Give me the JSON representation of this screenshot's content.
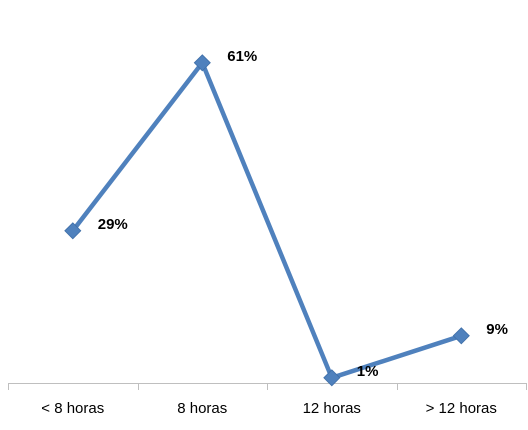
{
  "chart_data": {
    "type": "line",
    "categories": [
      "< 8 horas",
      "8 horas",
      "12 horas",
      "> 12 horas"
    ],
    "series": [
      {
        "values": [
          29,
          61,
          1,
          9
        ],
        "labels": [
          "29%",
          "61%",
          "1%",
          "9%"
        ]
      }
    ],
    "title": "",
    "xlabel": "",
    "ylabel": "",
    "ylim": [
      0,
      70
    ],
    "grid": false,
    "legend": "none",
    "marker": "diamond",
    "line_color": "#4F81BD",
    "marker_color": "#4F81BD",
    "axis_color": "#BFBFBF"
  }
}
